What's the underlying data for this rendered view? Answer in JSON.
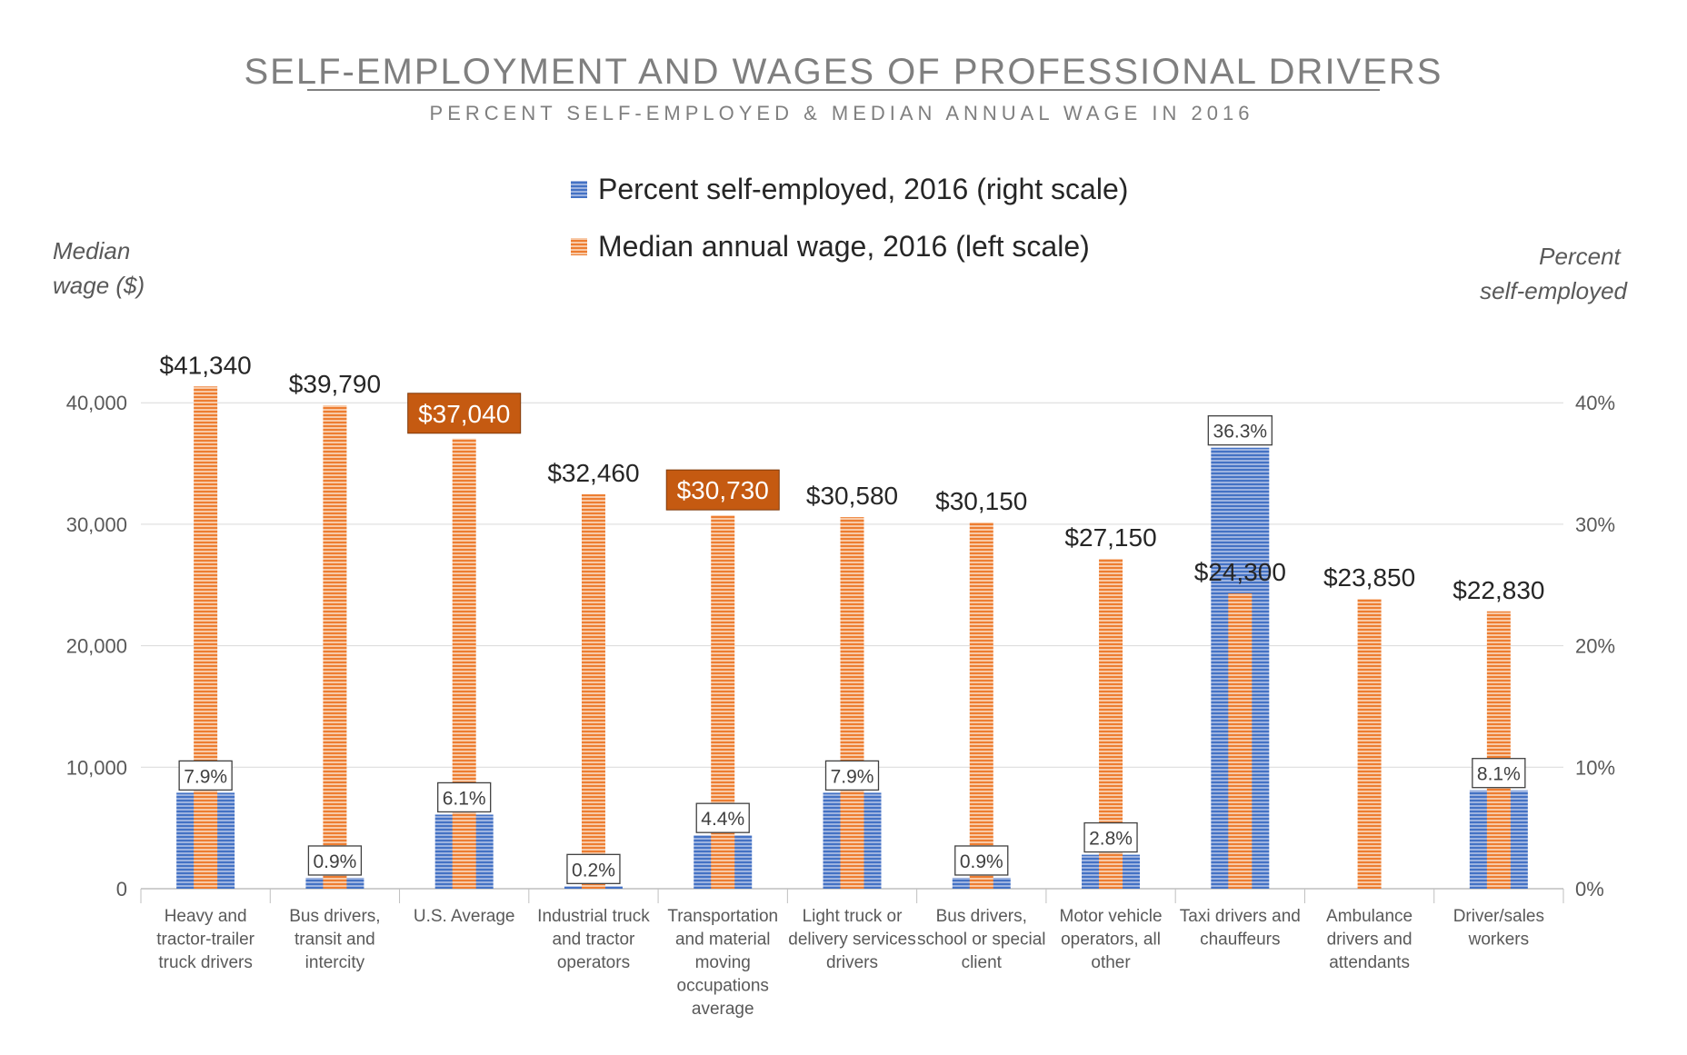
{
  "chart_data": {
    "type": "bar",
    "title": "SELF-EMPLOYMENT AND WAGES OF PROFESSIONAL DRIVERS",
    "subtitle": "PERCENT SELF-EMPLOYED & MEDIAN ANNUAL WAGE IN 2016",
    "ylabel_left": "Median wage ($)",
    "ylabel_right": "Percent self-employed",
    "ylim_left": [
      0,
      50000
    ],
    "ylim_right": [
      0,
      50
    ],
    "yticks_left": [
      "0",
      "10,000",
      "20,000",
      "30,000",
      "40,000"
    ],
    "yticks_right": [
      "0%",
      "10%",
      "20%",
      "30%",
      "40%"
    ],
    "grid": true,
    "legend_position": "top-center",
    "categories": [
      "Heavy and tractor-trailer truck drivers",
      "Bus drivers, transit and intercity",
      "U.S. Average",
      "Industrial truck and tractor operators",
      "Transportation and material moving occupations average",
      "Light truck or delivery services drivers",
      "Bus drivers, school or special client",
      "Motor vehicle operators, all other",
      "Taxi drivers and chauffeurs",
      "Ambulance drivers and attendants",
      "Driver/sales workers"
    ],
    "category_lines": [
      [
        "Heavy and",
        "tractor-trailer",
        "truck drivers"
      ],
      [
        "Bus drivers,",
        "transit and",
        "intercity"
      ],
      [
        "U.S. Average"
      ],
      [
        "Industrial truck",
        "and tractor",
        "operators"
      ],
      [
        "Transportation",
        "and material",
        "moving",
        "occupations",
        "average"
      ],
      [
        "Light truck or",
        "delivery services",
        "drivers"
      ],
      [
        "Bus drivers,",
        "school or special",
        "client"
      ],
      [
        "Motor vehicle",
        "operators, all",
        "other"
      ],
      [
        "Taxi drivers and",
        "chauffeurs"
      ],
      [
        "Ambulance",
        "drivers and",
        "attendants"
      ],
      [
        "Driver/sales",
        "workers"
      ]
    ],
    "series": [
      {
        "name": "Percent self-employed, 2016 (right scale)",
        "axis": "right",
        "color": "#4472c4",
        "values": [
          7.9,
          0.9,
          6.1,
          0.2,
          4.4,
          7.9,
          0.9,
          2.8,
          36.3,
          null,
          8.1
        ],
        "labels": [
          "7.9%",
          "0.9%",
          "6.1%",
          "0.2%",
          "4.4%",
          "7.9%",
          "0.9%",
          "2.8%",
          "36.3%",
          "",
          "8.1%"
        ]
      },
      {
        "name": "Median annual wage, 2016 (left scale)",
        "axis": "left",
        "color": "#ed7d31",
        "values": [
          41340,
          39790,
          37040,
          32460,
          30730,
          30580,
          30150,
          27150,
          24300,
          23850,
          22830
        ],
        "labels": [
          "$41,340",
          "$39,790",
          "$37,040",
          "$32,460",
          "$30,730",
          "$30,580",
          "$30,150",
          "$27,150",
          "$24,300",
          "$23,850",
          "$22,830"
        ],
        "highlighted": [
          2,
          4
        ],
        "highlight_color": "#c55a11"
      }
    ]
  }
}
